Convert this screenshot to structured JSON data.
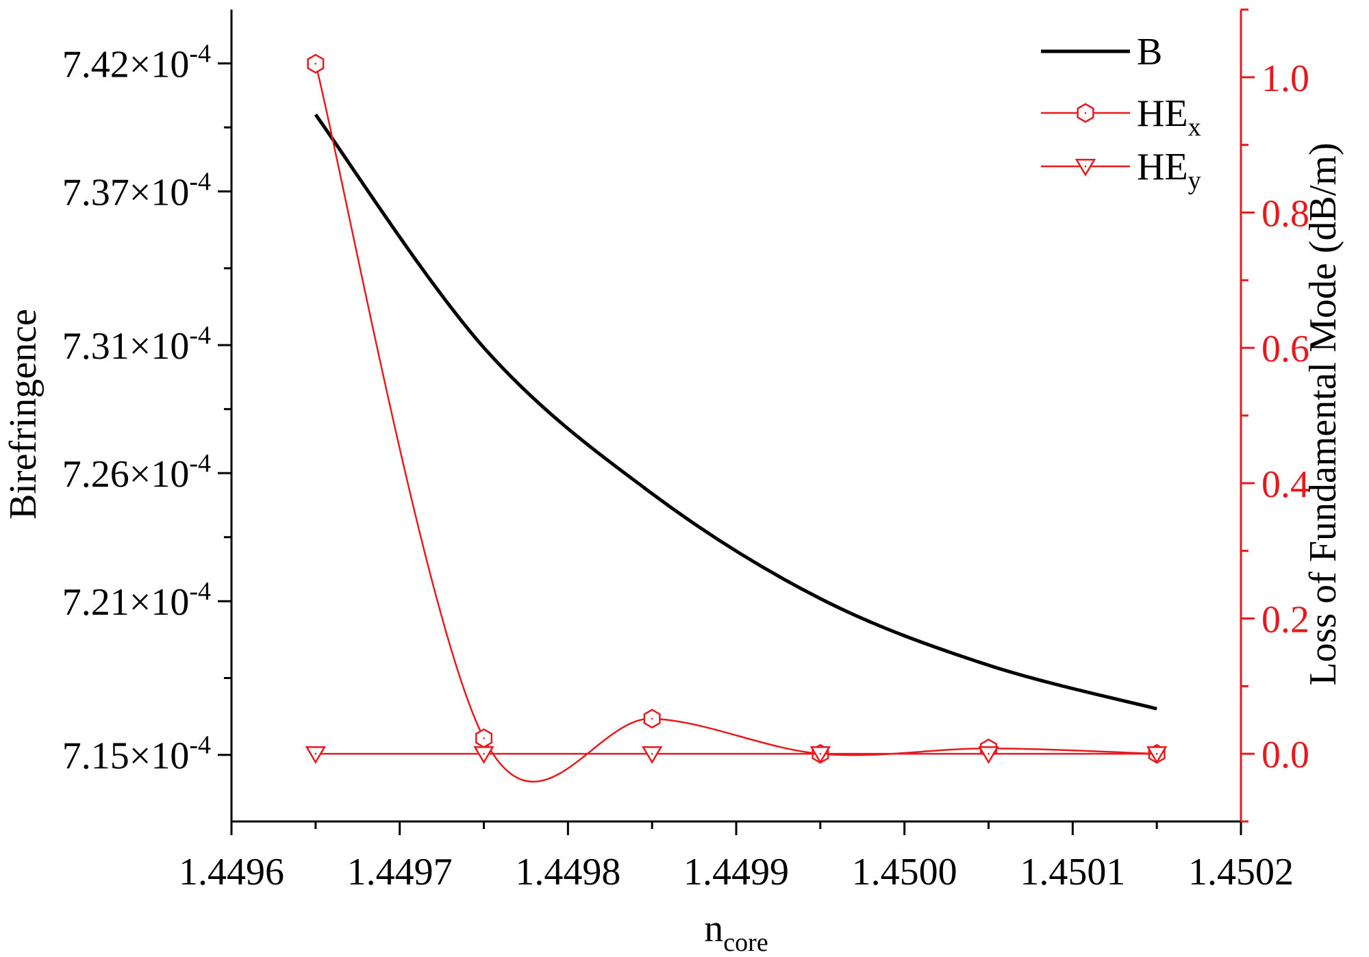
{
  "chart_data": {
    "type": "line",
    "xlabel": {
      "main": "n",
      "sub": "core"
    },
    "ylabel_left": "Birefringence",
    "ylabel_right": "Loss of Fundamental Mode (dB/m)",
    "xlim": [
      1.4496,
      1.4502
    ],
    "ylim_left": [
      0.0007124,
      0.0007441
    ],
    "ylim_right": [
      -0.1,
      1.1
    ],
    "x_ticks": [
      "1.4496",
      "1.4497",
      "1.4498",
      "1.4499",
      "1.4500",
      "1.4501",
      "1.4502"
    ],
    "y_left_ticks": [
      {
        "mantissa": "7.42",
        "exp": "-4"
      },
      {
        "mantissa": "7.37",
        "exp": "-4"
      },
      {
        "mantissa": "7.31",
        "exp": "-4"
      },
      {
        "mantissa": "7.26",
        "exp": "-4"
      },
      {
        "mantissa": "7.21",
        "exp": "-4"
      },
      {
        "mantissa": "7.15",
        "exp": "-4"
      }
    ],
    "y_right_ticks": [
      "1.0",
      "0.8",
      "0.6",
      "0.4",
      "0.2",
      "0.0"
    ],
    "series": [
      {
        "name": "B",
        "axis": "left",
        "color": "#000000",
        "marker": "none",
        "x": [
          1.44965,
          1.44975,
          1.44985,
          1.44995,
          1.45005,
          1.45015
        ],
        "y": [
          0.00074,
          0.0007309,
          0.0007252,
          0.0007211,
          0.0007185,
          0.0007168
        ]
      },
      {
        "name": "HE",
        "sub": "x",
        "axis": "right",
        "color": "#e8191c",
        "marker": "hexagon",
        "x": [
          1.44965,
          1.44975,
          1.44985,
          1.44995,
          1.45005,
          1.45015
        ],
        "y": [
          1.02,
          0.023,
          0.052,
          0.0,
          0.008,
          0.0
        ]
      },
      {
        "name": "HE",
        "sub": "y",
        "axis": "right",
        "color": "#e8191c",
        "marker": "triangle-down",
        "x": [
          1.44965,
          1.44975,
          1.44985,
          1.44995,
          1.45005,
          1.45015
        ],
        "y": [
          0.0,
          0.0,
          0.0,
          0.0,
          0.0,
          0.0
        ]
      }
    ],
    "legend_position": "top-right",
    "grid": false
  }
}
